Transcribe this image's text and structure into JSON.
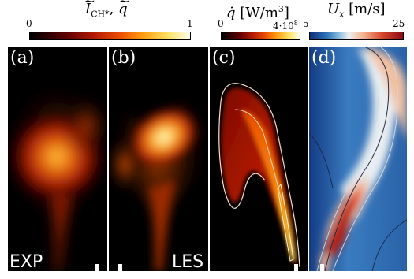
{
  "colorbars": [
    {
      "label": "Ĩ_CH*, q̃",
      "label_html_parts": [
        "I",
        "CH*",
        ", ",
        "q"
      ],
      "min": "0",
      "max": "1",
      "colormap": "hot"
    },
    {
      "label_parts": [
        "q̇",
        " [W/m",
        "3",
        "]"
      ],
      "min": "0",
      "max": "4·10",
      "max_exp": "8",
      "colormap": "hot"
    },
    {
      "label_parts": [
        "U",
        "x",
        " [m/s]"
      ],
      "min": "-5",
      "max": "25",
      "colormap": "diverging-blue-red"
    }
  ],
  "panels": [
    {
      "id": "a",
      "label": "(a)",
      "tag": "EXP"
    },
    {
      "id": "b",
      "label": "(b)",
      "tag": "LES"
    },
    {
      "id": "c",
      "label": "(c)",
      "tag": ""
    },
    {
      "id": "d",
      "label": "(d)",
      "tag": ""
    }
  ],
  "colors": {
    "hot_gradient": [
      "#000000",
      "#5a0000",
      "#b31a00",
      "#e84a00",
      "#ff9a10",
      "#ffe060",
      "#fffff0"
    ],
    "diverging_gradient": [
      "#0d2e78",
      "#2a72b8",
      "#8fc1e0",
      "#f0f0f0",
      "#f2b08c",
      "#d6452c",
      "#8a0a14"
    ]
  }
}
